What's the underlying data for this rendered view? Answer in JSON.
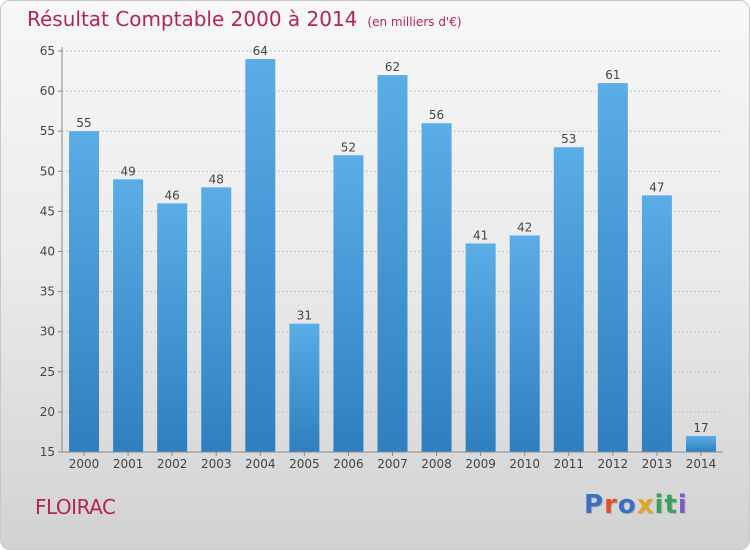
{
  "header": {
    "title": "Résultat Comptable 2000 à 2014",
    "subtitle": "(en milliers d'€)"
  },
  "footer": {
    "city": "FLOIRAC",
    "logo_text": "Proxiti"
  },
  "colors": {
    "title": "#b3245a",
    "bar_top": "#5aade6",
    "bar_bottom": "#2f7fc0",
    "logo": [
      "#3a6fc4",
      "#e0502b",
      "#3a6fc4",
      "#e0a52b",
      "#3aa05a",
      "#3aa05a",
      "#7e5bc6"
    ]
  },
  "chart_data": {
    "type": "bar",
    "title": "Résultat Comptable 2000 à 2014",
    "subtitle": "(en milliers d'€)",
    "xlabel": "",
    "ylabel": "",
    "categories": [
      "2000",
      "2001",
      "2002",
      "2003",
      "2004",
      "2005",
      "2006",
      "2007",
      "2008",
      "2009",
      "2010",
      "2011",
      "2012",
      "2013",
      "2014"
    ],
    "values": [
      55,
      49,
      46,
      48,
      64,
      31,
      52,
      62,
      56,
      41,
      42,
      53,
      61,
      47,
      17
    ],
    "ylim": [
      15,
      65
    ],
    "yticks": [
      15,
      20,
      25,
      30,
      35,
      40,
      45,
      50,
      55,
      60,
      65
    ],
    "grid": true,
    "legend": "none"
  }
}
